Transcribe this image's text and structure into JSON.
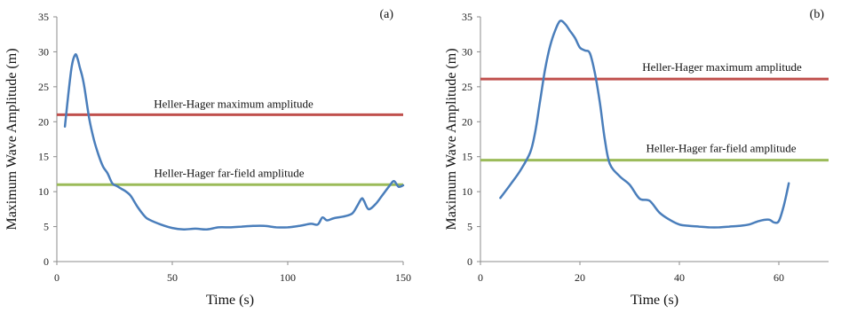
{
  "chart_data": [
    {
      "type": "line",
      "panel_label": "(a)",
      "xlabel": "Time (s)",
      "ylabel": "Maximum Wave Amplitude (m)",
      "xlim": [
        0,
        150
      ],
      "ylim": [
        0,
        35
      ],
      "xticks": [
        0,
        50,
        100,
        150
      ],
      "yticks": [
        0,
        5,
        10,
        15,
        20,
        25,
        30,
        35
      ],
      "grid": false,
      "series": [
        {
          "color": "#4a7ebb",
          "x": [
            3.5,
            5,
            6.5,
            8,
            9,
            10,
            11,
            12,
            14,
            16,
            18,
            20,
            22,
            24,
            26,
            28,
            30,
            32,
            35,
            38,
            40,
            45,
            50,
            55,
            60,
            65,
            70,
            75,
            80,
            85,
            90,
            95,
            100,
            105,
            110,
            113,
            115,
            117,
            120,
            125,
            128,
            130,
            132,
            133,
            135,
            138,
            141,
            144,
            146,
            148,
            150
          ],
          "y": [
            19.3,
            24,
            28,
            29.6,
            29,
            27.7,
            26.5,
            24.8,
            20.5,
            17.5,
            15.3,
            13.6,
            12.6,
            11.2,
            10.8,
            10.4,
            10,
            9.4,
            7.8,
            6.5,
            6,
            5.3,
            4.8,
            4.6,
            4.7,
            4.6,
            4.9,
            4.9,
            5,
            5.1,
            5.1,
            4.9,
            4.9,
            5.1,
            5.4,
            5.3,
            6.3,
            5.9,
            6.2,
            6.5,
            6.9,
            7.9,
            9,
            8.7,
            7.5,
            8.2,
            9.5,
            10.8,
            11.5,
            10.7,
            10.9
          ]
        },
        {
          "name": "Heller-Hager maximum amplitude",
          "color": "#c0504d",
          "x": [
            0,
            150
          ],
          "y": [
            21,
            21
          ]
        },
        {
          "name": "Heller-Hager far-field amplitude",
          "color": "#9bbb59",
          "x": [
            0,
            150
          ],
          "y": [
            11,
            11
          ]
        }
      ]
    },
    {
      "type": "line",
      "panel_label": "(b)",
      "xlabel": "Time (s)",
      "ylabel": "Maximum Wave Amplitude (m)",
      "xlim": [
        0,
        70
      ],
      "ylim": [
        0,
        35
      ],
      "xticks": [
        0,
        20,
        40,
        60
      ],
      "yticks": [
        0,
        5,
        10,
        15,
        20,
        25,
        30,
        35
      ],
      "grid": false,
      "series": [
        {
          "color": "#4a7ebb",
          "x": [
            4,
            6,
            8,
            10,
            11,
            12,
            13,
            14,
            15,
            16,
            17,
            18,
            19,
            20,
            21,
            22,
            23,
            24,
            25,
            26,
            28,
            30,
            32,
            34,
            36,
            38,
            40,
            42,
            44,
            46,
            48,
            50,
            52,
            54,
            56,
            58,
            59,
            60,
            61,
            62
          ],
          "y": [
            9.1,
            11,
            13,
            15.6,
            18.5,
            23,
            27.5,
            30.8,
            33,
            34.4,
            34,
            33,
            32,
            30.6,
            30.2,
            29.8,
            27,
            22.8,
            17.5,
            14,
            12.2,
            11,
            9,
            8.7,
            7,
            6,
            5.3,
            5.1,
            5,
            4.9,
            4.9,
            5,
            5.1,
            5.3,
            5.8,
            6,
            5.6,
            5.8,
            8,
            11.2
          ]
        },
        {
          "name": "Heller-Hager maximum amplitude",
          "color": "#c0504d",
          "x": [
            0,
            70
          ],
          "y": [
            26.1,
            26.1
          ]
        },
        {
          "name": "Heller-Hager far-field amplitude",
          "color": "#9bbb59",
          "x": [
            0,
            70
          ],
          "y": [
            14.5,
            14.5
          ]
        }
      ]
    }
  ]
}
